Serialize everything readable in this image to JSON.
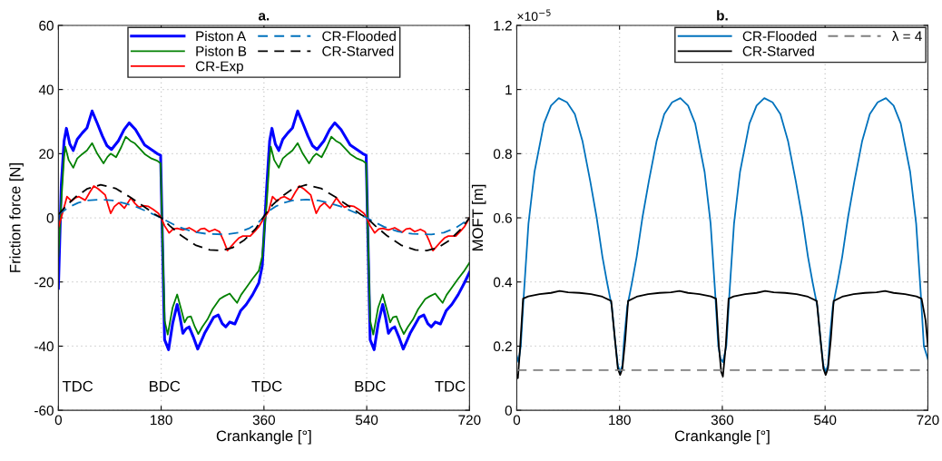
{
  "chart_data": [
    {
      "type": "line",
      "title": "a.",
      "xlabel": "Crankangle [°]",
      "ylabel": "Friction force [N]",
      "xlim": [
        0,
        720
      ],
      "xticks": [
        0,
        180,
        360,
        540,
        720
      ],
      "ylim": [
        -60,
        60
      ],
      "yticks": [
        -60,
        -40,
        -20,
        0,
        20,
        40,
        60
      ],
      "grid": true,
      "legend": "top",
      "annotations": [
        "TDC",
        "BDC",
        "TDC",
        "BDC",
        "TDC"
      ],
      "series": [
        {
          "name": "Piston A",
          "color": "#0000ff",
          "line_style": "solid",
          "x": [
            0,
            5,
            10,
            14,
            20,
            26,
            33,
            42,
            50,
            59,
            68,
            77,
            85,
            93,
            105,
            115,
            124,
            135,
            151,
            165,
            173,
            179,
            186,
            193,
            200,
            208,
            213,
            218,
            224,
            229,
            236,
            244,
            250,
            256,
            264,
            272,
            280,
            287,
            293,
            300,
            309,
            319,
            329,
            340,
            351,
            357,
            365,
            370,
            374,
            380,
            386,
            393,
            402,
            410,
            419,
            428,
            437,
            445,
            453,
            465,
            475,
            484,
            495,
            511,
            525,
            533,
            539,
            546,
            553,
            560,
            568,
            573,
            578,
            584,
            589,
            596,
            604,
            610,
            616,
            624,
            632,
            640,
            647,
            653,
            660,
            669,
            679,
            689,
            700,
            711,
            720
          ],
          "values": [
            -22,
            10,
            24,
            27.9,
            23,
            21,
            24.5,
            26.5,
            28,
            33.3,
            29.5,
            25.5,
            22.5,
            21.3,
            24,
            27.5,
            29.6,
            27.5,
            22.7,
            21,
            20,
            19.5,
            -38,
            -41.1,
            -33,
            -27,
            -31,
            -36,
            -34.5,
            -34,
            -37,
            -40.9,
            -38.5,
            -36,
            -33.5,
            -31,
            -30.3,
            -33,
            -34,
            -32.5,
            -33.1,
            -29,
            -27,
            -24,
            -20.3,
            -15,
            10,
            24,
            27.9,
            23,
            21,
            24.5,
            26.5,
            28,
            33.3,
            29.5,
            25.5,
            22.5,
            21.3,
            24,
            27.5,
            29.6,
            27.5,
            22.7,
            21,
            20,
            19.5,
            -38,
            -41.1,
            -33,
            -27,
            -31,
            -36,
            -34.5,
            -34,
            -37,
            -40.9,
            -38.5,
            -36,
            -33.5,
            -31,
            -30.3,
            -33,
            -34,
            -32.5,
            -33.1,
            -29,
            -27,
            -24,
            -20.3,
            -17
          ]
        },
        {
          "name": "Piston B",
          "color": "#008000",
          "line_style": "solid",
          "x": [
            0,
            5,
            10,
            12,
            18,
            26,
            33,
            42,
            50,
            59,
            68,
            79,
            86,
            91.5,
            101,
            110,
            118,
            126,
            134,
            143,
            151,
            163,
            173,
            179,
            186,
            191.5,
            200,
            208,
            215,
            221,
            226,
            232,
            239,
            245,
            252,
            261,
            270,
            282.5,
            290,
            300,
            306,
            313,
            320,
            329,
            340,
            351,
            357,
            365,
            370,
            372,
            378,
            386,
            393,
            402,
            410,
            419,
            428,
            439,
            446,
            451.5,
            461,
            470,
            478,
            486,
            494,
            503,
            511,
            523,
            533,
            539,
            546,
            551.5,
            560,
            568,
            575,
            581,
            586,
            592,
            599,
            605,
            612,
            621,
            630,
            642.5,
            650,
            660,
            666,
            673,
            680,
            689,
            700,
            711,
            720
          ],
          "values": [
            -12,
            5,
            19,
            22.2,
            18,
            15.6,
            18.5,
            19.9,
            21,
            23.3,
            20,
            17,
            19,
            20,
            18.9,
            22,
            25.3,
            24,
            23.2,
            21.5,
            19.9,
            18.5,
            17.8,
            17,
            -32,
            -36.4,
            -28,
            -23.9,
            -28.5,
            -32.6,
            -31,
            -30.7,
            -34,
            -36.2,
            -34,
            -31.7,
            -28.5,
            -25.3,
            -24.5,
            -23.6,
            -25,
            -26.5,
            -24,
            -21.8,
            -19,
            -16.5,
            -12,
            5,
            19,
            22.2,
            18,
            15.6,
            18.5,
            19.9,
            21,
            23.3,
            20,
            17,
            19,
            20,
            18.9,
            22,
            25.3,
            24,
            23.2,
            21.5,
            19.9,
            18.5,
            17.8,
            17,
            -32,
            -36.4,
            -28,
            -23.9,
            -28.5,
            -32.6,
            -31,
            -30.7,
            -34,
            -36.2,
            -34,
            -31.7,
            -28.5,
            -25.3,
            -24.5,
            -23.6,
            -25,
            -26.5,
            -24,
            -21.8,
            -19,
            -16.5,
            -14
          ]
        },
        {
          "name": "CR-Exp",
          "color": "#ff0000",
          "line_style": "solid",
          "x": [
            0,
            8,
            15,
            23,
            30,
            36,
            47,
            55,
            62,
            70,
            82,
            87,
            91.5,
            98,
            106,
            115.5,
            121,
            127,
            134,
            141,
            149,
            157,
            166,
            175,
            180,
            186,
            194,
            201,
            208,
            218,
            229,
            236,
            242,
            249,
            256,
            264,
            274,
            282,
            289,
            296,
            302,
            309,
            316,
            323,
            336,
            344,
            351,
            357,
            368,
            375,
            383,
            390,
            396,
            407,
            415,
            422,
            430,
            442,
            447,
            451.5,
            458,
            466,
            475.5,
            481,
            487,
            494,
            501,
            509,
            517,
            526,
            535,
            540,
            546,
            554,
            561,
            568,
            578,
            589,
            596,
            602,
            609,
            616,
            624,
            634,
            642,
            649,
            656,
            662,
            669,
            676,
            683,
            696,
            704,
            711,
            720
          ],
          "values": [
            -3,
            2,
            6.6,
            5.2,
            6.3,
            6.6,
            5.5,
            8,
            9.9,
            9,
            7.1,
            4,
            1.4,
            3.5,
            4.7,
            3,
            4.5,
            6.2,
            4.5,
            3.3,
            3.8,
            3.6,
            2.6,
            1.4,
            0,
            -2.5,
            -4.7,
            -3.5,
            -3.3,
            -3.8,
            -3.1,
            -3.8,
            -4.5,
            -3.5,
            -3.3,
            -4.3,
            -3.6,
            -4.3,
            -7,
            -10.2,
            -9,
            -7.6,
            -6.3,
            -5.7,
            -5.7,
            -4.2,
            -2.8,
            -1,
            2,
            6.6,
            5.2,
            6.3,
            6.6,
            5.5,
            8,
            9.9,
            9,
            7.1,
            4,
            1.4,
            3.5,
            4.7,
            3,
            4.5,
            6.2,
            4.5,
            3.3,
            3.8,
            3.6,
            2.6,
            1.4,
            0,
            -2.5,
            -4.7,
            -3.5,
            -3.3,
            -3.8,
            -3.1,
            -3.8,
            -4.5,
            -3.5,
            -3.3,
            -4.3,
            -3.6,
            -4.3,
            -7,
            -10.2,
            -9,
            -7.6,
            -6.3,
            -5.7,
            -5.7,
            -4.2,
            -2.8,
            0
          ]
        },
        {
          "name": "CR-Flooded",
          "color": "#0072bd",
          "line_style": "dashed",
          "x": [
            0,
            10,
            20,
            35,
            50,
            74,
            95,
            115,
            135,
            155,
            170,
            180,
            190,
            210,
            235,
            260,
            293,
            315,
            335,
            350,
            360,
            370,
            380,
            395,
            410,
            434,
            455,
            475,
            495,
            515,
            530,
            540,
            550,
            570,
            595,
            620,
            653,
            675,
            695,
            710,
            720
          ],
          "values": [
            1,
            2.3,
            3.5,
            4.7,
            5.4,
            5.7,
            5.4,
            4.6,
            3.5,
            2,
            0.8,
            0,
            -1,
            -2.8,
            -4.3,
            -5,
            -5.2,
            -4.6,
            -3.2,
            -1.5,
            0.3,
            2.3,
            3.5,
            4.7,
            5.4,
            5.7,
            5.4,
            4.6,
            3.5,
            2,
            0.8,
            0,
            -1,
            -2.8,
            -4.3,
            -5,
            -5.2,
            -4.6,
            -3.2,
            -1.5,
            -0.5
          ]
        },
        {
          "name": "CR-Starved",
          "color": "#000000",
          "line_style": "dashed",
          "x": [
            0,
            15,
            30,
            50,
            74,
            100,
            125,
            150,
            170,
            180,
            195,
            215,
            240,
            265,
            285,
            305,
            325,
            345,
            360,
            375,
            390,
            410,
            434,
            460,
            485,
            510,
            530,
            540,
            555,
            575,
            600,
            625,
            645,
            665,
            685,
            705,
            720
          ],
          "values": [
            1,
            4,
            6.5,
            9,
            10.3,
            9.2,
            6.5,
            3.5,
            1,
            0,
            -2.5,
            -5.5,
            -8.5,
            -10,
            -10.2,
            -9.3,
            -7,
            -3.5,
            0.5,
            4,
            6.5,
            9,
            10.3,
            9.2,
            6.5,
            3.5,
            1,
            0,
            -2.5,
            -5.5,
            -8.5,
            -10,
            -10.2,
            -9.3,
            -7,
            -3.5,
            0
          ]
        }
      ]
    },
    {
      "type": "line",
      "title": "b.",
      "xlabel": "Crankangle [°]",
      "ylabel": "MOFT [m]",
      "xlim": [
        0,
        720
      ],
      "xticks": [
        0,
        180,
        360,
        540,
        720
      ],
      "ylim": [
        0,
        1.2
      ],
      "yticks": [
        0,
        0.2,
        0.4,
        0.6,
        0.8,
        1,
        1.2
      ],
      "grid": true,
      "legend": "top right",
      "annotations": [
        "×10$^{−5}$"
      ],
      "series": [
        {
          "name": "CR-Flooded",
          "color": "#0072bd",
          "line_style": "solid",
          "x": [
            0,
            3,
            7,
            12.5,
            20.5,
            31,
            47.5,
            60,
            73.5,
            88,
            101.7,
            115,
            128.6,
            140,
            150,
            158,
            166.5,
            172,
            177,
            181,
            185,
            188,
            193.5,
            202,
            210,
            220,
            231.4,
            245,
            258.3,
            272,
            286.5,
            300,
            312.5,
            329,
            339.5,
            347.5,
            353,
            357,
            361,
            367,
            372.5,
            380.5,
            391,
            407.5,
            420,
            433.5,
            448,
            461.7,
            475,
            488.6,
            500,
            510,
            518,
            526.5,
            532,
            537,
            541,
            545,
            548,
            553.5,
            562,
            570,
            580,
            591.4,
            605,
            618.3,
            632,
            646.5,
            660,
            672.5,
            689,
            699.5,
            707.5,
            713,
            720
          ],
          "values": [
            0.17,
            0.15,
            0.2,
            0.365,
            0.582,
            0.743,
            0.894,
            0.95,
            0.973,
            0.96,
            0.923,
            0.84,
            0.715,
            0.6,
            0.479,
            0.4,
            0.323,
            0.22,
            0.14,
            0.12,
            0.14,
            0.22,
            0.323,
            0.4,
            0.479,
            0.6,
            0.715,
            0.84,
            0.923,
            0.96,
            0.973,
            0.95,
            0.894,
            0.743,
            0.582,
            0.365,
            0.2,
            0.16,
            0.15,
            0.2,
            0.365,
            0.582,
            0.743,
            0.894,
            0.95,
            0.973,
            0.96,
            0.923,
            0.84,
            0.715,
            0.6,
            0.479,
            0.4,
            0.323,
            0.22,
            0.14,
            0.12,
            0.14,
            0.22,
            0.323,
            0.4,
            0.479,
            0.6,
            0.715,
            0.84,
            0.923,
            0.96,
            0.973,
            0.95,
            0.894,
            0.743,
            0.582,
            0.365,
            0.2,
            0.16
          ]
        },
        {
          "name": "CR-Starved",
          "color": "#000000",
          "line_style": "solid",
          "x": [
            0,
            2,
            6,
            11,
            20,
            40,
            60,
            75,
            90,
            110,
            130,
            150,
            165.4,
            172,
            177,
            181,
            185,
            190,
            195,
            210,
            230,
            250,
            270,
            285,
            300,
            320,
            340,
            349,
            354,
            358,
            361,
            366,
            371,
            380,
            400,
            420,
            435,
            450,
            470,
            490,
            510,
            525.4,
            532,
            537,
            541,
            545,
            550,
            555,
            570,
            590,
            610,
            630,
            645,
            660,
            680,
            700,
            709,
            716,
            720
          ],
          "values": [
            0.11,
            0.1,
            0.2,
            0.348,
            0.355,
            0.362,
            0.366,
            0.372,
            0.368,
            0.366,
            0.362,
            0.354,
            0.341,
            0.22,
            0.13,
            0.11,
            0.13,
            0.22,
            0.341,
            0.354,
            0.362,
            0.366,
            0.368,
            0.372,
            0.366,
            0.362,
            0.355,
            0.348,
            0.2,
            0.12,
            0.105,
            0.2,
            0.348,
            0.355,
            0.362,
            0.366,
            0.372,
            0.368,
            0.366,
            0.362,
            0.354,
            0.341,
            0.22,
            0.13,
            0.11,
            0.13,
            0.22,
            0.341,
            0.354,
            0.362,
            0.366,
            0.368,
            0.372,
            0.366,
            0.362,
            0.355,
            0.348,
            0.28,
            0.2
          ]
        },
        {
          "name": "λ = 4",
          "color": "#808080",
          "line_style": "dashed",
          "x": [
            0,
            720
          ],
          "values": [
            0.125,
            0.125
          ]
        }
      ]
    }
  ]
}
